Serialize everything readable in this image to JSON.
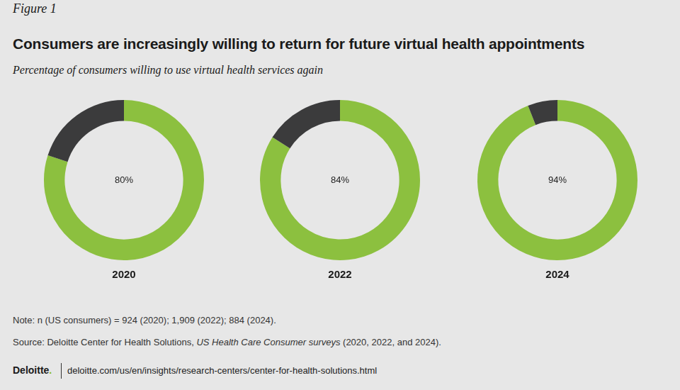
{
  "figure": "Figure 1",
  "title": "Consumers are increasingly willing to return for future virtual health appointments",
  "subtitle": "Percentage of consumers willing to use virtual health services again",
  "chart_data": [
    {
      "type": "doughnut",
      "title": "2020",
      "values": [
        80,
        20
      ],
      "value_labels": [
        "80%",
        null
      ],
      "colors": [
        "#8cc03f",
        "#3b3b3c"
      ]
    },
    {
      "type": "doughnut",
      "title": "2022",
      "values": [
        84,
        16
      ],
      "value_labels": [
        "84%",
        null
      ],
      "colors": [
        "#8cc03f",
        "#3b3b3c"
      ]
    },
    {
      "type": "doughnut",
      "title": "2024",
      "values": [
        94,
        6
      ],
      "value_labels": [
        "94%",
        null
      ],
      "colors": [
        "#8cc03f",
        "#3b3b3c"
      ]
    }
  ],
  "note": "Note: n (US consumers) = 924 (2020); 1,909 (2022); 884 (2024).",
  "source": {
    "prefix": "Source: Deloitte Center for Health Solutions, ",
    "italic": "US Health Care Consumer surveys",
    "suffix": " (2020, 2022, and 2024)."
  },
  "brand": "Deloitte.",
  "url": "deloitte.com/us/en/insights/research-centers/center-for-health-solutions.html"
}
